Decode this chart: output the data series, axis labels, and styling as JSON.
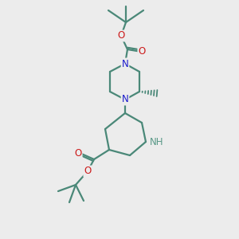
{
  "background_color": "#ececec",
  "bond_color": "#4a8878",
  "bond_width": 1.6,
  "atom_colors": {
    "N": "#1a1acc",
    "O": "#cc1a1a",
    "H": "#5a9988",
    "C": "#4a8878"
  },
  "figure_size": [
    3.0,
    3.0
  ],
  "dpi": 100
}
